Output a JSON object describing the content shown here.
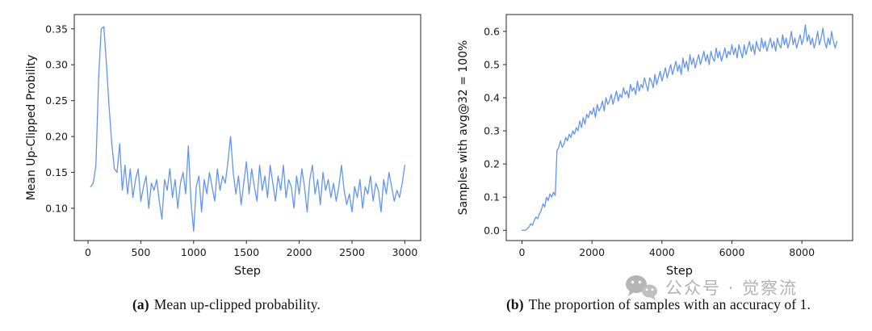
{
  "page": {
    "background": "#ffffff"
  },
  "chart_data": [
    {
      "id": "a",
      "type": "line",
      "title": "",
      "xlabel": "Step",
      "ylabel": "Mean Up-Clipped Probility",
      "line_color": "#6495ED",
      "legend": null,
      "grid": false,
      "xlim": [
        -130,
        3150
      ],
      "ylim": [
        0.055,
        0.37
      ],
      "xticks": [
        0,
        500,
        1000,
        1500,
        2000,
        2500,
        3000
      ],
      "xtick_labels": [
        "0",
        "500",
        "1000",
        "1500",
        "2000",
        "2500",
        "3000"
      ],
      "yticks": [
        0.1,
        0.15,
        0.2,
        0.25,
        0.3,
        0.35
      ],
      "ytick_labels": [
        "0.10",
        "0.15",
        "0.20",
        "0.25",
        "0.30",
        "0.35"
      ],
      "x_start": 25,
      "x_step": 25,
      "y": [
        0.13,
        0.135,
        0.16,
        0.28,
        0.35,
        0.353,
        0.3,
        0.24,
        0.19,
        0.155,
        0.15,
        0.19,
        0.125,
        0.16,
        0.12,
        0.155,
        0.115,
        0.14,
        0.155,
        0.11,
        0.13,
        0.145,
        0.1,
        0.135,
        0.125,
        0.14,
        0.11,
        0.085,
        0.14,
        0.125,
        0.155,
        0.115,
        0.14,
        0.1,
        0.135,
        0.15,
        0.12,
        0.187,
        0.11,
        0.068,
        0.13,
        0.145,
        0.095,
        0.14,
        0.12,
        0.15,
        0.13,
        0.11,
        0.155,
        0.125,
        0.145,
        0.135,
        0.165,
        0.2,
        0.15,
        0.12,
        0.145,
        0.105,
        0.135,
        0.165,
        0.12,
        0.155,
        0.13,
        0.11,
        0.16,
        0.125,
        0.145,
        0.115,
        0.16,
        0.135,
        0.11,
        0.145,
        0.125,
        0.16,
        0.115,
        0.14,
        0.13,
        0.1,
        0.145,
        0.12,
        0.155,
        0.13,
        0.095,
        0.14,
        0.16,
        0.12,
        0.14,
        0.105,
        0.15,
        0.125,
        0.14,
        0.115,
        0.135,
        0.11,
        0.13,
        0.16,
        0.125,
        0.105,
        0.12,
        0.095,
        0.13,
        0.115,
        0.14,
        0.1,
        0.13,
        0.12,
        0.145,
        0.11,
        0.135,
        0.125,
        0.095,
        0.14,
        0.12,
        0.15,
        0.13,
        0.11,
        0.125,
        0.115,
        0.135,
        0.16
      ]
    },
    {
      "id": "b",
      "type": "line",
      "title": "",
      "xlabel": "Step",
      "ylabel": "Samples with avg@32 = 100%",
      "line_color": "#6495ED",
      "legend": null,
      "grid": false,
      "xlim": [
        -450,
        9450
      ],
      "ylim": [
        -0.031,
        0.651
      ],
      "xticks": [
        0,
        2000,
        4000,
        6000,
        8000
      ],
      "xtick_labels": [
        "0",
        "2000",
        "4000",
        "6000",
        "8000"
      ],
      "yticks": [
        0.0,
        0.1,
        0.2,
        0.3,
        0.4,
        0.5,
        0.6
      ],
      "ytick_labels": [
        "0.0",
        "0.1",
        "0.2",
        "0.3",
        "0.4",
        "0.5",
        "0.6"
      ],
      "x_start": 0,
      "x_step": 50,
      "y": [
        0.0,
        0.0,
        0.0,
        0.005,
        0.01,
        0.02,
        0.015,
        0.03,
        0.04,
        0.035,
        0.05,
        0.06,
        0.08,
        0.07,
        0.1,
        0.09,
        0.11,
        0.1,
        0.115,
        0.105,
        0.24,
        0.25,
        0.27,
        0.25,
        0.26,
        0.28,
        0.27,
        0.29,
        0.28,
        0.3,
        0.29,
        0.31,
        0.3,
        0.33,
        0.31,
        0.34,
        0.32,
        0.35,
        0.34,
        0.36,
        0.35,
        0.37,
        0.34,
        0.38,
        0.36,
        0.37,
        0.39,
        0.36,
        0.4,
        0.38,
        0.39,
        0.41,
        0.38,
        0.4,
        0.42,
        0.39,
        0.41,
        0.4,
        0.43,
        0.41,
        0.42,
        0.4,
        0.44,
        0.42,
        0.43,
        0.41,
        0.45,
        0.42,
        0.44,
        0.43,
        0.46,
        0.44,
        0.42,
        0.46,
        0.45,
        0.43,
        0.47,
        0.44,
        0.46,
        0.48,
        0.45,
        0.47,
        0.49,
        0.46,
        0.48,
        0.5,
        0.47,
        0.49,
        0.51,
        0.48,
        0.5,
        0.47,
        0.52,
        0.49,
        0.51,
        0.48,
        0.53,
        0.5,
        0.52,
        0.49,
        0.51,
        0.53,
        0.5,
        0.52,
        0.54,
        0.51,
        0.53,
        0.5,
        0.54,
        0.52,
        0.51,
        0.55,
        0.52,
        0.54,
        0.51,
        0.53,
        0.55,
        0.52,
        0.54,
        0.53,
        0.56,
        0.53,
        0.55,
        0.52,
        0.56,
        0.54,
        0.52,
        0.56,
        0.53,
        0.55,
        0.57,
        0.54,
        0.56,
        0.53,
        0.57,
        0.55,
        0.54,
        0.58,
        0.55,
        0.57,
        0.54,
        0.56,
        0.58,
        0.55,
        0.57,
        0.54,
        0.58,
        0.56,
        0.55,
        0.59,
        0.56,
        0.58,
        0.55,
        0.57,
        0.6,
        0.56,
        0.58,
        0.55,
        0.57,
        0.59,
        0.56,
        0.58,
        0.62,
        0.57,
        0.59,
        0.56,
        0.58,
        0.55,
        0.57,
        0.6,
        0.56,
        0.58,
        0.61,
        0.57,
        0.55,
        0.58,
        0.56,
        0.6,
        0.57,
        0.55,
        0.57
      ]
    }
  ],
  "captions": {
    "a_label": "(a)",
    "a_text": "Mean up-clipped probability.",
    "b_label": "(b)",
    "b_text": "The proportion of samples with an accuracy of 1."
  },
  "watermark": {
    "icon": "wechat-icon",
    "text": "公众号 · 觉察流",
    "color": "#a6a6a6"
  }
}
